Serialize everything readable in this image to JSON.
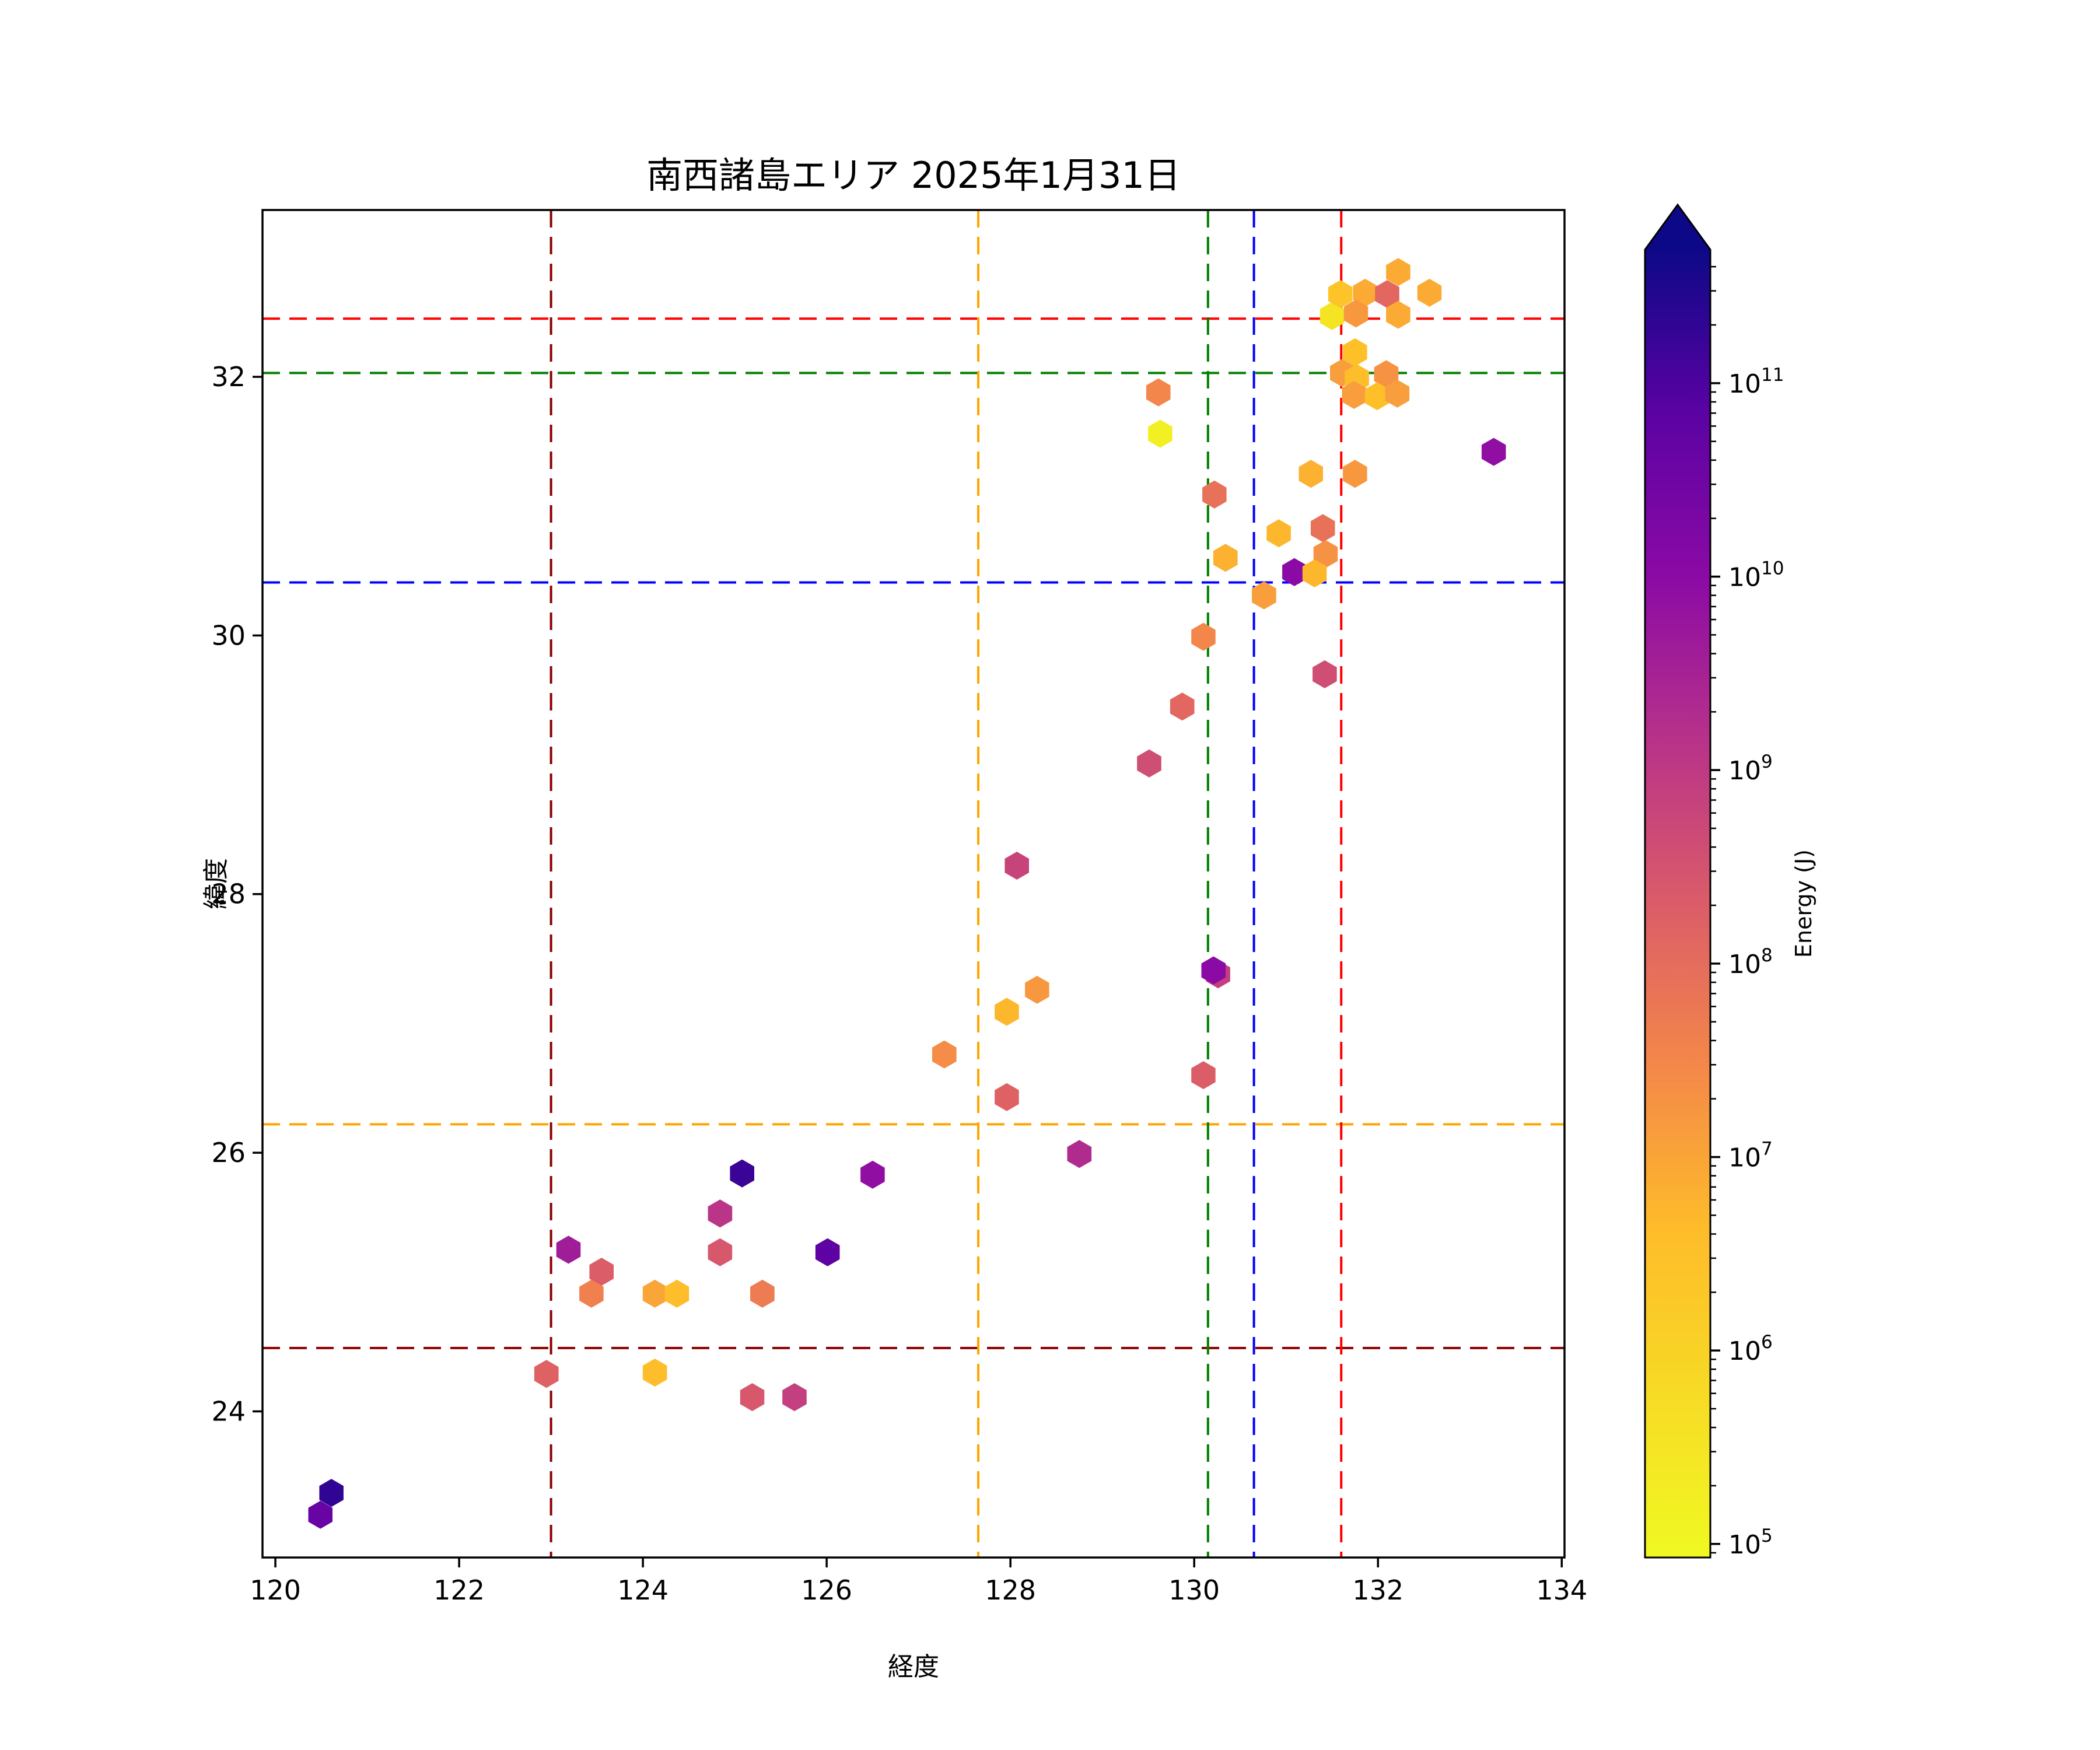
{
  "chart_data": {
    "type": "scatter",
    "title": "南西諸島エリア 2025年1月31日",
    "xlabel": "経度",
    "ylabel": "緯度",
    "xlim": [
      119.86,
      134.03
    ],
    "ylim": [
      22.87,
      33.29
    ],
    "xticks": [
      120,
      122,
      124,
      126,
      128,
      130,
      132,
      134
    ],
    "yticks": [
      24,
      26,
      28,
      30,
      32
    ],
    "grid": false,
    "marker": "hexagon",
    "colormap": "plasma_r",
    "colorbar": {
      "label": "Energy (J)",
      "scale": "log",
      "tick_base": "10",
      "tick_exponents": [
        5,
        6,
        7,
        8,
        9,
        10,
        11
      ],
      "log_vmin": 4.93,
      "log_vmax": 11.69,
      "extend": "max"
    },
    "vlines": [
      {
        "x": 123.0,
        "color": "#8b0000"
      },
      {
        "x": 127.65,
        "color": "#ffa500"
      },
      {
        "x": 130.15,
        "color": "#008000"
      },
      {
        "x": 130.65,
        "color": "#0000ff"
      },
      {
        "x": 131.6,
        "color": "#ff0000"
      }
    ],
    "hlines": [
      {
        "y": 32.45,
        "color": "#ff0000"
      },
      {
        "y": 32.03,
        "color": "#008000"
      },
      {
        "y": 30.41,
        "color": "#0000ff"
      },
      {
        "y": 26.22,
        "color": "#ffa500"
      },
      {
        "y": 24.49,
        "color": "#8b0000"
      }
    ],
    "points": [
      {
        "lon": 120.49,
        "lat": 23.2,
        "log_energy": 10.6
      },
      {
        "lon": 120.61,
        "lat": 23.37,
        "log_energy": 11.3
      },
      {
        "lon": 122.95,
        "lat": 24.29,
        "log_energy": 8.2
      },
      {
        "lon": 124.13,
        "lat": 24.3,
        "log_energy": 6.6
      },
      {
        "lon": 125.19,
        "lat": 24.11,
        "log_energy": 8.4
      },
      {
        "lon": 125.65,
        "lat": 24.11,
        "log_energy": 8.9
      },
      {
        "lon": 123.19,
        "lat": 25.25,
        "log_energy": 9.6
      },
      {
        "lon": 123.55,
        "lat": 25.08,
        "log_energy": 8.3
      },
      {
        "lon": 123.44,
        "lat": 24.91,
        "log_energy": 7.6
      },
      {
        "lon": 124.13,
        "lat": 24.91,
        "log_energy": 7.0
      },
      {
        "lon": 124.37,
        "lat": 24.91,
        "log_energy": 6.6
      },
      {
        "lon": 125.3,
        "lat": 24.91,
        "log_energy": 7.7
      },
      {
        "lon": 124.84,
        "lat": 25.23,
        "log_energy": 8.4
      },
      {
        "lon": 124.84,
        "lat": 25.53,
        "log_energy": 9.1
      },
      {
        "lon": 125.08,
        "lat": 25.84,
        "log_energy": 11.2
      },
      {
        "lon": 126.01,
        "lat": 25.23,
        "log_energy": 10.8
      },
      {
        "lon": 126.5,
        "lat": 25.83,
        "log_energy": 9.9
      },
      {
        "lon": 127.28,
        "lat": 26.76,
        "log_energy": 7.4
      },
      {
        "lon": 127.96,
        "lat": 27.09,
        "log_energy": 6.7
      },
      {
        "lon": 128.29,
        "lat": 27.26,
        "log_energy": 7.2
      },
      {
        "lon": 127.96,
        "lat": 26.43,
        "log_energy": 8.2
      },
      {
        "lon": 128.07,
        "lat": 28.22,
        "log_energy": 8.8
      },
      {
        "lon": 128.75,
        "lat": 25.99,
        "log_energy": 9.3
      },
      {
        "lon": 129.51,
        "lat": 29.01,
        "log_energy": 8.6
      },
      {
        "lon": 129.87,
        "lat": 29.45,
        "log_energy": 8.1
      },
      {
        "lon": 129.63,
        "lat": 31.56,
        "log_energy": 5.2
      },
      {
        "lon": 129.61,
        "lat": 31.88,
        "log_energy": 7.5
      },
      {
        "lon": 130.1,
        "lat": 29.99,
        "log_energy": 7.5
      },
      {
        "lon": 130.22,
        "lat": 31.09,
        "log_energy": 7.9
      },
      {
        "lon": 130.26,
        "lat": 27.38,
        "log_energy": 8.9
      },
      {
        "lon": 130.21,
        "lat": 27.41,
        "log_energy": 10.0
      },
      {
        "lon": 130.1,
        "lat": 26.6,
        "log_energy": 8.3
      },
      {
        "lon": 130.34,
        "lat": 30.6,
        "log_energy": 6.8
      },
      {
        "lon": 130.76,
        "lat": 30.31,
        "log_energy": 7.1
      },
      {
        "lon": 130.92,
        "lat": 30.79,
        "log_energy": 6.7
      },
      {
        "lon": 131.4,
        "lat": 30.83,
        "log_energy": 7.9
      },
      {
        "lon": 131.43,
        "lat": 30.63,
        "log_energy": 7.3
      },
      {
        "lon": 131.09,
        "lat": 30.49,
        "log_energy": 10.0
      },
      {
        "lon": 131.31,
        "lat": 30.48,
        "log_energy": 6.7
      },
      {
        "lon": 131.42,
        "lat": 29.7,
        "log_energy": 8.6
      },
      {
        "lon": 131.27,
        "lat": 31.25,
        "log_energy": 6.8
      },
      {
        "lon": 131.75,
        "lat": 31.25,
        "log_energy": 7.2
      },
      {
        "lon": 133.26,
        "lat": 31.42,
        "log_energy": 9.9
      },
      {
        "lon": 131.5,
        "lat": 32.47,
        "log_energy": 5.5
      },
      {
        "lon": 131.59,
        "lat": 32.64,
        "log_energy": 6.4
      },
      {
        "lon": 131.86,
        "lat": 32.65,
        "log_energy": 6.9
      },
      {
        "lon": 131.76,
        "lat": 32.49,
        "log_energy": 7.2
      },
      {
        "lon": 132.1,
        "lat": 32.64,
        "log_energy": 8.1
      },
      {
        "lon": 132.22,
        "lat": 32.81,
        "log_energy": 6.9
      },
      {
        "lon": 132.22,
        "lat": 32.48,
        "log_energy": 6.9
      },
      {
        "lon": 132.56,
        "lat": 32.65,
        "log_energy": 6.9
      },
      {
        "lon": 131.75,
        "lat": 32.19,
        "log_energy": 6.5
      },
      {
        "lon": 131.61,
        "lat": 32.03,
        "log_energy": 7.1
      },
      {
        "lon": 131.77,
        "lat": 31.99,
        "log_energy": 6.6
      },
      {
        "lon": 132.09,
        "lat": 32.02,
        "log_energy": 7.3
      },
      {
        "lon": 131.74,
        "lat": 31.86,
        "log_energy": 7.1
      },
      {
        "lon": 131.99,
        "lat": 31.85,
        "log_energy": 6.5
      },
      {
        "lon": 132.21,
        "lat": 31.87,
        "log_energy": 7.1
      }
    ]
  }
}
